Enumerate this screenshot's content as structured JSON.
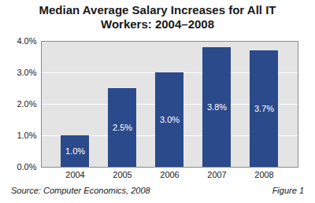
{
  "chart_data": {
    "type": "bar",
    "title": "Median Average Salary Increases for All IT Workers: 2004–2008",
    "categories": [
      "2004",
      "2005",
      "2006",
      "2007",
      "2008"
    ],
    "values": [
      1.0,
      2.5,
      3.0,
      3.8,
      3.7
    ],
    "value_labels": [
      "1.0%",
      "2.5%",
      "3.0%",
      "3.8%",
      "3.7%"
    ],
    "data_labels": true,
    "color": "#2b4a8b",
    "ylim": [
      0,
      4
    ],
    "yticks": [
      {
        "value": 0,
        "label": "0.0%"
      },
      {
        "value": 1,
        "label": "1.0%"
      },
      {
        "value": 2,
        "label": "2.0%"
      },
      {
        "value": 3,
        "label": "3.0%"
      },
      {
        "value": 4,
        "label": "4.0%"
      }
    ],
    "grid": true,
    "source": "Source: Computer Economics, 2008",
    "figure": "Figure 1"
  }
}
